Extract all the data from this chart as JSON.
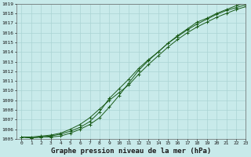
{
  "title": "Graphe pression niveau de la mer (hPa)",
  "background_color": "#c8eaea",
  "grid_color": "#aad4d4",
  "line_color": "#1a5c1a",
  "x_values": [
    0,
    1,
    2,
    3,
    4,
    5,
    6,
    7,
    8,
    9,
    10,
    11,
    12,
    13,
    14,
    15,
    16,
    17,
    18,
    19,
    20,
    21,
    22,
    23
  ],
  "series1": [
    1005.2,
    1005.1,
    1005.2,
    1005.2,
    1005.3,
    1005.6,
    1006.0,
    1006.5,
    1007.2,
    1008.3,
    1009.5,
    1010.8,
    1012.1,
    1013.1,
    1014.0,
    1014.9,
    1015.7,
    1016.4,
    1017.1,
    1017.5,
    1018.0,
    1018.4,
    1018.8,
    1019.1
  ],
  "series2": [
    1005.2,
    1005.1,
    1005.2,
    1005.3,
    1005.5,
    1005.8,
    1006.2,
    1006.8,
    1007.8,
    1009.2,
    1010.2,
    1011.2,
    1012.3,
    1013.2,
    1014.0,
    1014.9,
    1015.6,
    1016.3,
    1016.9,
    1017.4,
    1017.9,
    1018.3,
    1018.6,
    1018.9
  ],
  "series3": [
    1005.2,
    1005.2,
    1005.3,
    1005.4,
    1005.6,
    1006.0,
    1006.5,
    1007.2,
    1008.1,
    1009.0,
    1009.8,
    1010.6,
    1011.7,
    1012.7,
    1013.6,
    1014.5,
    1015.3,
    1016.0,
    1016.6,
    1017.1,
    1017.6,
    1018.0,
    1018.4,
    1018.7
  ],
  "ylim_min": 1005,
  "ylim_max": 1019,
  "xlim_min": -0.5,
  "xlim_max": 23,
  "ytick_step": 1,
  "title_fontsize": 6.5,
  "tick_fontsize": 4.5,
  "fig_width": 3.2,
  "fig_height": 2.0,
  "dpi": 100
}
